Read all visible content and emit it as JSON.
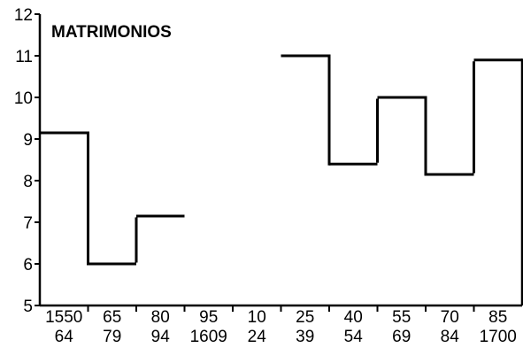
{
  "chart_data": {
    "type": "line",
    "title": "MATRIMONIOS",
    "xlabel": "",
    "ylabel": "",
    "ylim": [
      5,
      12
    ],
    "yticks": [
      "5",
      "6",
      "7",
      "8",
      "9",
      "10",
      "11",
      "12"
    ],
    "categories": [
      {
        "top": "1550",
        "bottom": "64"
      },
      {
        "top": "65",
        "bottom": "79"
      },
      {
        "top": "80",
        "bottom": "94"
      },
      {
        "top": "95",
        "bottom": "1609"
      },
      {
        "top": "10",
        "bottom": "24"
      },
      {
        "top": "25",
        "bottom": "39"
      },
      {
        "top": "40",
        "bottom": "54"
      },
      {
        "top": "55",
        "bottom": "69"
      },
      {
        "top": "70",
        "bottom": "84"
      },
      {
        "top": "85",
        "bottom": "1700"
      }
    ],
    "values": [
      9.15,
      6.0,
      7.15,
      null,
      null,
      11.0,
      8.4,
      10.0,
      8.15,
      10.9
    ],
    "grid": false,
    "legend": "none"
  }
}
